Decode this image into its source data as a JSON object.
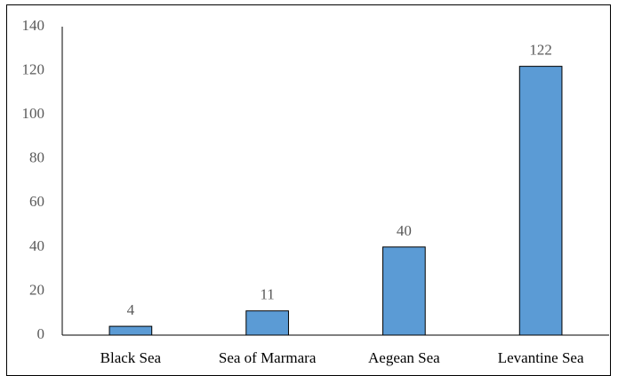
{
  "chart_data": {
    "type": "bar",
    "categories": [
      "Black Sea",
      "Sea of Marmara",
      "Aegean Sea",
      "Levantine Sea"
    ],
    "values": [
      4,
      11,
      40,
      122
    ],
    "color": "#5b9bd5",
    "ylim": [
      0,
      140
    ],
    "yticks": [
      0,
      20,
      40,
      60,
      80,
      100,
      120,
      140
    ],
    "grid": false
  }
}
